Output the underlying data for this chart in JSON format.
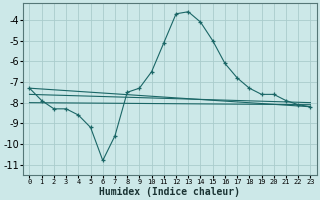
{
  "xlabel": "Humidex (Indice chaleur)",
  "bg_color": "#cce8e8",
  "grid_color": "#aacccc",
  "line_color": "#1a6666",
  "xlim": [
    -0.5,
    23.5
  ],
  "ylim": [
    -11.5,
    -3.2
  ],
  "yticks": [
    -11,
    -10,
    -9,
    -8,
    -7,
    -6,
    -5,
    -4
  ],
  "xticks": [
    0,
    1,
    2,
    3,
    4,
    5,
    6,
    7,
    8,
    9,
    10,
    11,
    12,
    13,
    14,
    15,
    16,
    17,
    18,
    19,
    20,
    21,
    22,
    23
  ],
  "main_x": [
    0,
    1,
    2,
    3,
    4,
    5,
    6,
    7,
    8,
    9,
    10,
    11,
    12,
    13,
    14,
    15,
    16,
    17,
    18,
    19,
    20,
    21,
    22,
    23
  ],
  "main_y": [
    -7.3,
    -7.9,
    -8.3,
    -8.3,
    -8.6,
    -9.2,
    -10.8,
    -9.6,
    -7.5,
    -7.3,
    -6.5,
    -5.1,
    -3.7,
    -3.6,
    -4.1,
    -5.0,
    -6.1,
    -6.8,
    -7.3,
    -7.6,
    -7.6,
    -7.9,
    -8.1,
    -8.2
  ],
  "ref_lines": [
    {
      "x": [
        0,
        23
      ],
      "y": [
        -7.3,
        -8.2
      ]
    },
    {
      "x": [
        0,
        23
      ],
      "y": [
        -7.6,
        -8.0
      ]
    },
    {
      "x": [
        0,
        23
      ],
      "y": [
        -8.0,
        -8.1
      ]
    }
  ]
}
